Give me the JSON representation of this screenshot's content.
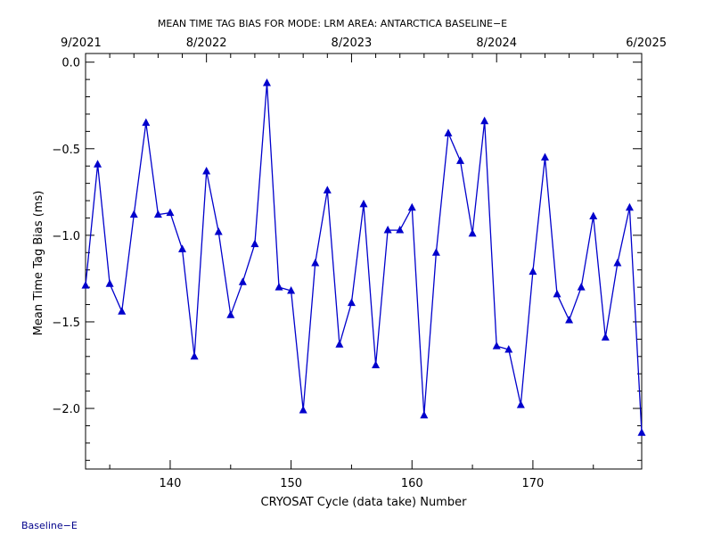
{
  "chart_data": {
    "type": "line",
    "title": "MEAN TIME TAG BIAS FOR MODE: LRM AREA: ANTARCTICA BASELINE−E",
    "xlabel": "CRYOSAT Cycle (data take) Number",
    "ylabel": "Mean Time Tag Bias (ms)",
    "xlim": [
      133,
      179
    ],
    "ylim": [
      -2.35,
      0.05
    ],
    "x_ticks": [
      140,
      150,
      160,
      170
    ],
    "x_tick_labels": [
      "140",
      "150",
      "160",
      "170"
    ],
    "y_ticks": [
      0.0,
      -0.5,
      -1.0,
      -1.5,
      -2.0
    ],
    "y_tick_labels": [
      "0.0",
      "−0.5",
      "−1.0",
      "−1.5",
      "−2.0"
    ],
    "top_axis_ticks": [
      {
        "x": 133,
        "label": "9/2021"
      },
      {
        "x": 143,
        "label": "8/2022"
      },
      {
        "x": 155,
        "label": "8/2023"
      },
      {
        "x": 167,
        "label": "8/2024"
      },
      {
        "x": 179,
        "label": "6/2025"
      }
    ],
    "grid": false,
    "series": [
      {
        "color": "#0000cc",
        "marker": "triangle",
        "x": [
          133,
          134,
          135,
          136,
          137,
          138,
          139,
          140,
          141,
          142,
          143,
          144,
          145,
          146,
          147,
          148,
          149,
          150,
          151,
          152,
          153,
          154,
          155,
          156,
          157,
          158,
          159,
          160,
          161,
          162,
          163,
          164,
          165,
          166,
          167,
          168,
          169,
          170,
          171,
          172,
          173,
          174,
          175,
          176,
          177,
          178,
          179
        ],
        "y": [
          -1.29,
          -0.59,
          -1.28,
          -1.44,
          -0.88,
          -0.35,
          -0.88,
          -0.87,
          -1.08,
          -1.7,
          -0.63,
          -0.98,
          -1.46,
          -1.27,
          -1.05,
          -0.12,
          -1.3,
          -1.32,
          -2.01,
          -1.16,
          -0.74,
          -1.63,
          -1.39,
          -0.82,
          -1.75,
          -0.97,
          -0.97,
          -0.84,
          -2.04,
          -1.1,
          -0.41,
          -0.57,
          -0.99,
          -0.34,
          -1.64,
          -1.66,
          -1.98,
          -1.21,
          -0.55,
          -1.34,
          -1.49,
          -1.3,
          -0.89,
          -1.59,
          -1.16,
          -0.84,
          -2.14
        ]
      }
    ]
  },
  "footer": {
    "label": "Baseline−E"
  }
}
